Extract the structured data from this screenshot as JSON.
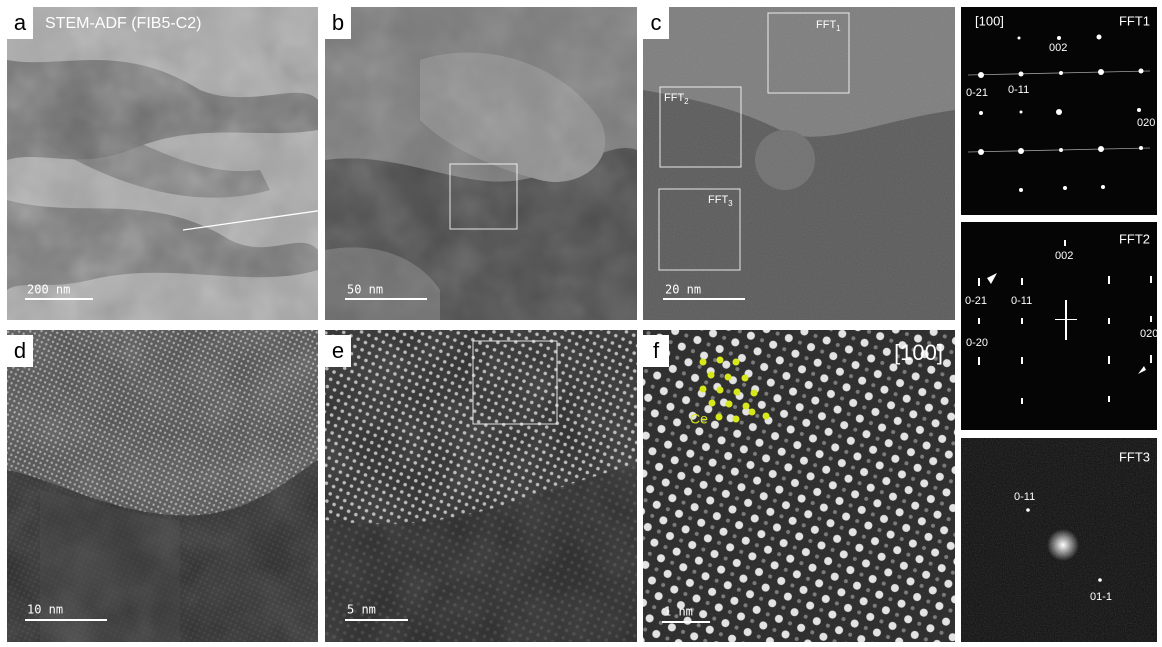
{
  "panels": {
    "a": {
      "letter": "a",
      "caption": "STEM-ADF (FIB5-C2)",
      "scale": "200 nm"
    },
    "b": {
      "letter": "b",
      "scale": "50 nm"
    },
    "c": {
      "letter": "c",
      "scale": "20 nm",
      "boxes": [
        {
          "base": "FFT",
          "sub": "1"
        },
        {
          "base": "FFT",
          "sub": "2"
        },
        {
          "base": "FFT",
          "sub": "3"
        }
      ]
    },
    "d": {
      "letter": "d",
      "scale": "10 nm"
    },
    "e": {
      "letter": "e",
      "scale": "5 nm"
    },
    "f": {
      "letter": "f",
      "scale": "1 nm",
      "zone": "[100]",
      "atom": "Ce"
    }
  },
  "fft": [
    {
      "title": "FFT1",
      "zone": "[100]",
      "spots": [
        "002",
        "0-11",
        "0-21",
        "020"
      ]
    },
    {
      "title": "FFT2",
      "spots": [
        "002",
        "0-21",
        "0-11",
        "020",
        "0-20"
      ]
    },
    {
      "title": "FFT3",
      "spots": [
        "0-11",
        "01-1"
      ]
    }
  ]
}
